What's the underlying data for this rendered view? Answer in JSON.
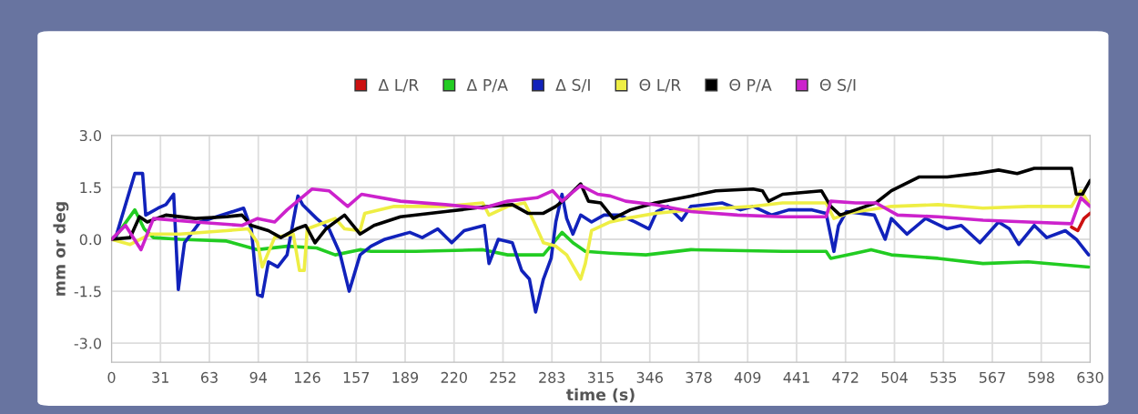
{
  "chart_data": {
    "type": "line",
    "xlabel": "time (s)",
    "ylabel": "mm or deg",
    "xlim": [
      0,
      630
    ],
    "ylim": [
      -3.55,
      3.0
    ],
    "xticks": [
      0,
      {
        "value": 31.5,
        "label": "31"
      },
      63,
      {
        "value": 94.5,
        "label": "94"
      },
      126,
      {
        "value": 157.5,
        "label": "157"
      },
      189,
      {
        "value": 220.5,
        "label": "220"
      },
      252,
      {
        "value": 283.5,
        "label": "283"
      },
      315,
      {
        "value": 346.5,
        "label": "346"
      },
      378,
      {
        "value": 409.5,
        "label": "409"
      },
      441,
      {
        "value": 472.5,
        "label": "472"
      },
      504,
      {
        "value": 535.5,
        "label": "535"
      },
      567,
      {
        "value": 598.5,
        "label": "598"
      },
      630
    ],
    "yticks": [
      {
        "value": 3,
        "label": "3.0"
      },
      {
        "value": 1.5,
        "label": "1.5"
      },
      {
        "value": 0,
        "label": "0.0"
      },
      {
        "value": -1.5,
        "label": "-1.5"
      },
      {
        "value": -3,
        "label": "-3.0"
      }
    ],
    "grid": true,
    "legend": "top",
    "series": [
      {
        "name": "Δ L/R",
        "color": "#cc1111",
        "x": [
          618,
          622,
          626,
          630
        ],
        "values": [
          0.35,
          0.25,
          0.6,
          0.75
        ]
      },
      {
        "name": "Δ P/A",
        "color": "#22cc22",
        "x": [
          0,
          3,
          15,
          21,
          27,
          44,
          74,
          94,
          113,
          132,
          144,
          160,
          167,
          196,
          239,
          255,
          278,
          290,
          297,
          305,
          321,
          344,
          373,
          432,
          460,
          463,
          479,
          489,
          502,
          532,
          561,
          590,
          629
        ],
        "values": [
          0,
          0.1,
          0.85,
          0.3,
          0.05,
          0,
          -0.05,
          -0.3,
          -0.2,
          -0.25,
          -0.45,
          -0.3,
          -0.35,
          -0.35,
          -0.3,
          -0.45,
          -0.45,
          0.2,
          -0.1,
          -0.35,
          -0.4,
          -0.45,
          -0.3,
          -0.35,
          -0.35,
          -0.55,
          -0.4,
          -0.3,
          -0.45,
          -0.55,
          -0.7,
          -0.65,
          -0.8
        ]
      },
      {
        "name": "Δ S/I",
        "color": "#1122bb",
        "x": [
          0,
          3,
          15,
          20,
          22,
          30,
          35,
          40,
          43,
          47,
          57,
          85,
          90,
          94,
          97,
          101,
          107,
          113,
          120,
          123,
          132,
          140,
          147,
          153,
          160,
          167,
          176,
          192,
          200,
          210,
          219,
          227,
          240,
          243,
          249,
          258,
          264,
          269,
          273,
          278,
          283,
          286,
          290,
          293,
          297,
          302,
          309,
          317,
          327,
          337,
          346,
          351,
          358,
          367,
          373,
          393,
          405,
          413,
          425,
          436,
          451,
          460,
          465,
          468,
          473,
          491,
          498,
          502,
          512,
          524,
          538,
          547,
          559,
          571,
          578,
          584,
          594,
          602,
          614,
          621,
          629
        ],
        "values": [
          0,
          0.1,
          1.9,
          1.9,
          0.7,
          0.9,
          1.0,
          1.3,
          -1.45,
          -0.1,
          0.5,
          0.9,
          0.3,
          -1.6,
          -1.65,
          -0.65,
          -0.8,
          -0.45,
          1.25,
          1.0,
          0.6,
          0.3,
          -0.4,
          -1.5,
          -0.45,
          -0.2,
          0,
          0.2,
          0.05,
          0.3,
          -0.1,
          0.25,
          0.4,
          -0.7,
          0,
          -0.1,
          -0.9,
          -1.15,
          -2.1,
          -1.15,
          -0.55,
          0.5,
          1.3,
          0.6,
          0.15,
          0.7,
          0.5,
          0.7,
          0.7,
          0.5,
          0.3,
          0.8,
          0.95,
          0.55,
          0.95,
          1.05,
          0.85,
          0.95,
          0.7,
          0.85,
          0.85,
          0.75,
          -0.35,
          0.4,
          0.8,
          0.7,
          0,
          0.6,
          0.15,
          0.6,
          0.3,
          0.4,
          -0.1,
          0.5,
          0.3,
          -0.15,
          0.4,
          0.05,
          0.25,
          0,
          -0.45
        ]
      },
      {
        "name": "Θ L/R",
        "color": "#eeee44",
        "x": [
          0,
          12,
          25,
          44,
          74,
          88,
          94,
          97,
          105,
          117,
          121,
          124,
          126,
          144,
          150,
          160,
          163,
          182,
          215,
          239,
          243,
          255,
          266,
          272,
          278,
          286,
          293,
          302,
          305,
          309,
          321,
          331,
          350,
          373,
          413,
          432,
          460,
          465,
          471,
          473,
          502,
          532,
          561,
          590,
          618,
          624,
          629
        ],
        "values": [
          0,
          -0.15,
          0.15,
          0.15,
          0.25,
          0.3,
          -0.1,
          -0.8,
          0.05,
          0.15,
          -0.9,
          -0.9,
          0.3,
          0.6,
          0.3,
          0.25,
          0.75,
          0.95,
          0.95,
          1.05,
          0.7,
          0.95,
          1.05,
          0.5,
          -0.1,
          -0.2,
          -0.45,
          -1.15,
          -0.7,
          0.25,
          0.5,
          0.6,
          0.75,
          0.85,
          0.95,
          1.05,
          1.05,
          0.6,
          0.7,
          0.75,
          0.95,
          1.0,
          0.9,
          0.95,
          0.95,
          1.4,
          1.05
        ]
      },
      {
        "name": "Θ P/A",
        "color": "#000000",
        "x": [
          0,
          12,
          18,
          23,
          35,
          54,
          74,
          84,
          90,
          101,
          109,
          119,
          125,
          131,
          138,
          150,
          160,
          169,
          186,
          215,
          243,
          258,
          268,
          278,
          286,
          293,
          302,
          307,
          315,
          323,
          334,
          350,
          373,
          389,
          413,
          419,
          423,
          432,
          457,
          463,
          469,
          479,
          492,
          502,
          520,
          538,
          557,
          571,
          583,
          594,
          618,
          621,
          625,
          630
        ],
        "values": [
          0,
          0.05,
          0.65,
          0.5,
          0.7,
          0.6,
          0.65,
          0.7,
          0.4,
          0.25,
          0.05,
          0.3,
          0.4,
          -0.1,
          0.3,
          0.7,
          0.15,
          0.4,
          0.65,
          0.8,
          0.95,
          1.0,
          0.75,
          0.75,
          0.95,
          1.2,
          1.6,
          1.1,
          1.05,
          0.6,
          0.85,
          1.05,
          1.25,
          1.4,
          1.45,
          1.4,
          1.1,
          1.3,
          1.4,
          0.95,
          0.7,
          0.85,
          1.05,
          1.4,
          1.8,
          1.8,
          1.9,
          2.0,
          1.9,
          2.05,
          2.05,
          1.3,
          1.3,
          1.7
        ]
      },
      {
        "name": "Θ S/I",
        "color": "#cc22cc",
        "x": [
          0,
          9,
          19,
          27,
          54,
          84,
          94,
          105,
          113,
          129,
          140,
          152,
          161,
          186,
          215,
          239,
          255,
          274,
          284,
          290,
          302,
          313,
          321,
          331,
          350,
          373,
          403,
          432,
          460,
          463,
          479,
          492,
          506,
          532,
          561,
          590,
          618,
          624,
          630
        ],
        "values": [
          0,
          0.4,
          -0.3,
          0.6,
          0.5,
          0.4,
          0.6,
          0.5,
          0.85,
          1.45,
          1.4,
          0.95,
          1.3,
          1.1,
          1.0,
          0.9,
          1.1,
          1.2,
          1.4,
          1.1,
          1.55,
          1.3,
          1.25,
          1.1,
          1.0,
          0.8,
          0.7,
          0.65,
          0.65,
          1.1,
          1.05,
          1.05,
          0.7,
          0.65,
          0.55,
          0.5,
          0.45,
          1.2,
          0.95
        ]
      }
    ]
  }
}
